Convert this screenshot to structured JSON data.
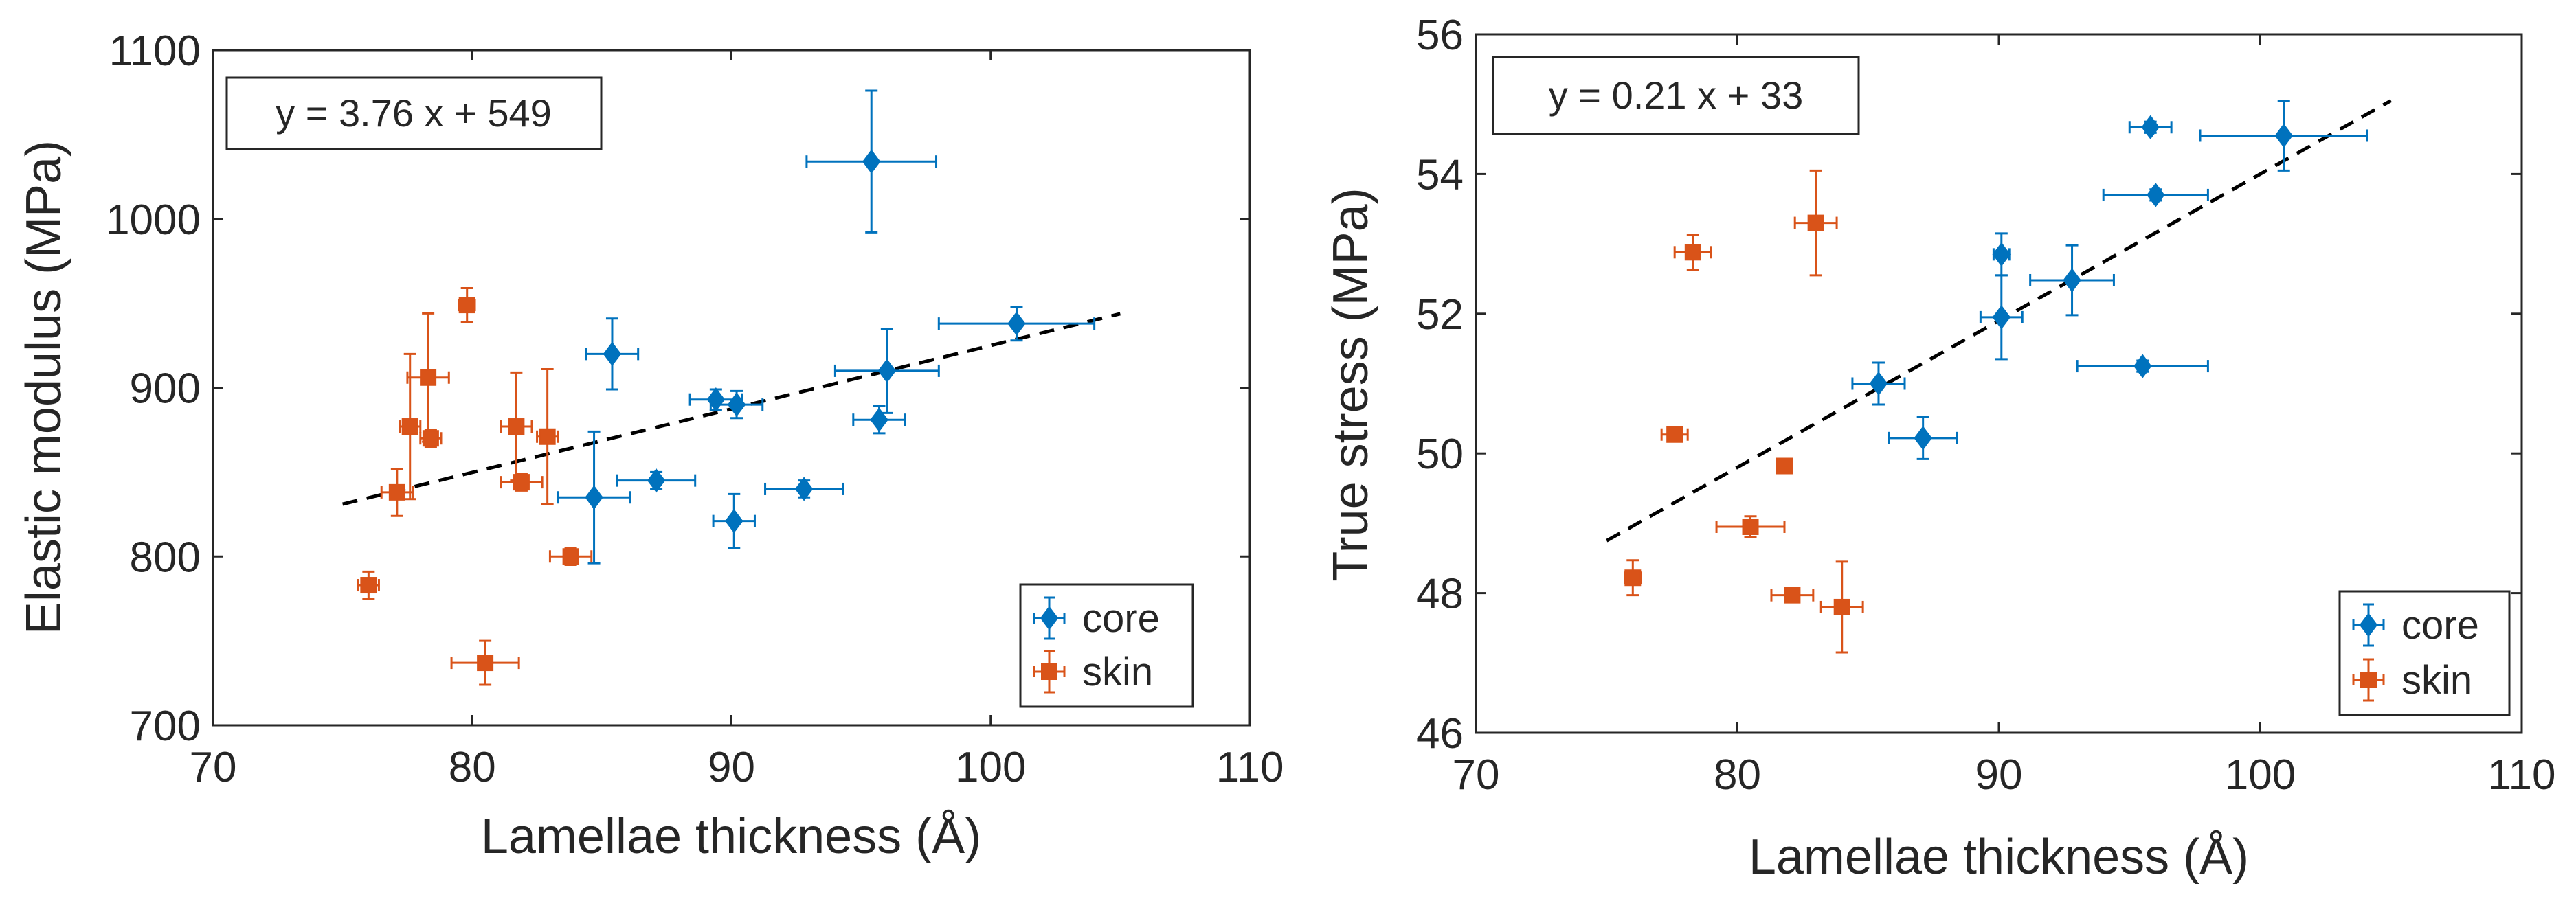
{
  "colors": {
    "core": "#0072BD",
    "skin": "#D95319",
    "fit": "#000000",
    "axis": "#262626"
  },
  "chart_data": [
    {
      "type": "scatter",
      "xlabel": "Lamellae thickness (Å)",
      "ylabel": "Elastic modulus (MPa)",
      "xlim": [
        70,
        110
      ],
      "ylim": [
        700,
        1100
      ],
      "xticks": [
        "70",
        "80",
        "90",
        "100",
        "110"
      ],
      "yticks": [
        "700",
        "800",
        "900",
        "1000",
        "1100"
      ],
      "equation": "y = 3.76 x + 549",
      "fit": {
        "slope": 3.76,
        "intercept": 549,
        "x_range": [
          75,
          105
        ]
      },
      "legend": {
        "location": "bottom-right",
        "entries": [
          "core",
          "skin"
        ]
      },
      "series": [
        {
          "name": "core",
          "marker": "diamond",
          "points": [
            {
              "x": 85.4,
              "y": 920,
              "xerr": 1.0,
              "yerr": 21
            },
            {
              "x": 89.4,
              "y": 893,
              "xerr": 1.0,
              "yerr": 6
            },
            {
              "x": 90.2,
              "y": 890,
              "xerr": 1.0,
              "yerr": 8
            },
            {
              "x": 96.0,
              "y": 910,
              "xerr": 2.0,
              "yerr": 25
            },
            {
              "x": 95.7,
              "y": 881,
              "xerr": 1.0,
              "yerr": 8
            },
            {
              "x": 101.0,
              "y": 938,
              "xerr": 3.0,
              "yerr": 10
            },
            {
              "x": 95.4,
              "y": 1034,
              "xerr": 2.5,
              "yerr": 42
            },
            {
              "x": 87.1,
              "y": 845,
              "xerr": 1.5,
              "yerr": 5
            },
            {
              "x": 92.8,
              "y": 840,
              "xerr": 1.5,
              "yerr": 5
            },
            {
              "x": 84.7,
              "y": 835,
              "xerr": 1.4,
              "yerr": 39
            },
            {
              "x": 90.1,
              "y": 821,
              "xerr": 0.8,
              "yerr": 16
            }
          ]
        },
        {
          "name": "skin",
          "marker": "square",
          "points": [
            {
              "x": 79.8,
              "y": 949,
              "xerr": 0.3,
              "yerr": 10
            },
            {
              "x": 78.3,
              "y": 906,
              "xerr": 0.8,
              "yerr": 38
            },
            {
              "x": 77.6,
              "y": 877,
              "xerr": 0.4,
              "yerr": 43
            },
            {
              "x": 78.4,
              "y": 870,
              "xerr": 0.4,
              "yerr": 5
            },
            {
              "x": 81.7,
              "y": 877,
              "xerr": 0.6,
              "yerr": 32
            },
            {
              "x": 82.9,
              "y": 871,
              "xerr": 0.4,
              "yerr": 40
            },
            {
              "x": 81.9,
              "y": 844,
              "xerr": 0.8,
              "yerr": 5
            },
            {
              "x": 77.1,
              "y": 838,
              "xerr": 0.6,
              "yerr": 14
            },
            {
              "x": 83.8,
              "y": 800,
              "xerr": 0.8,
              "yerr": 5
            },
            {
              "x": 76.0,
              "y": 783,
              "xerr": 0.4,
              "yerr": 8
            },
            {
              "x": 80.5,
              "y": 737,
              "xerr": 1.3,
              "yerr": 13
            }
          ]
        }
      ]
    },
    {
      "type": "scatter",
      "xlabel": "Lamellae thickness (Å)",
      "ylabel": "True stress (MPa)",
      "xlim": [
        70,
        110
      ],
      "ylim": [
        46,
        56
      ],
      "xticks": [
        "70",
        "80",
        "90",
        "100",
        "110"
      ],
      "yticks": [
        "46",
        "48",
        "50",
        "52",
        "54",
        "56"
      ],
      "equation": "y = 0.21 x + 33",
      "fit": {
        "slope": 0.21,
        "intercept": 33,
        "x_range": [
          75,
          105
        ]
      },
      "legend": {
        "location": "bottom-right",
        "entries": [
          "core",
          "skin"
        ]
      },
      "series": [
        {
          "name": "core",
          "marker": "diamond",
          "points": [
            {
              "x": 95.8,
              "y": 54.67,
              "xerr": 0.8,
              "yerr": 0.08
            },
            {
              "x": 100.9,
              "y": 54.55,
              "xerr": 3.2,
              "yerr": 0.5
            },
            {
              "x": 96.0,
              "y": 53.7,
              "xerr": 2.0,
              "yerr": 0.08
            },
            {
              "x": 90.1,
              "y": 52.85,
              "xerr": 0.3,
              "yerr": 0.3
            },
            {
              "x": 92.8,
              "y": 52.48,
              "xerr": 1.6,
              "yerr": 0.5
            },
            {
              "x": 90.1,
              "y": 51.95,
              "xerr": 0.8,
              "yerr": 0.6
            },
            {
              "x": 95.5,
              "y": 51.25,
              "xerr": 2.5,
              "yerr": 0.08
            },
            {
              "x": 85.4,
              "y": 51.0,
              "xerr": 1.0,
              "yerr": 0.3
            },
            {
              "x": 87.1,
              "y": 50.22,
              "xerr": 1.3,
              "yerr": 0.3
            }
          ]
        },
        {
          "name": "skin",
          "marker": "square",
          "points": [
            {
              "x": 83.0,
              "y": 53.3,
              "xerr": 0.8,
              "yerr": 0.75
            },
            {
              "x": 78.3,
              "y": 52.88,
              "xerr": 0.7,
              "yerr": 0.25
            },
            {
              "x": 77.6,
              "y": 50.27,
              "xerr": 0.5,
              "yerr": 0.06
            },
            {
              "x": 81.8,
              "y": 49.82,
              "xerr": 0.2,
              "yerr": 0.06
            },
            {
              "x": 80.5,
              "y": 48.95,
              "xerr": 1.3,
              "yerr": 0.15
            },
            {
              "x": 76.0,
              "y": 48.22,
              "xerr": 0.3,
              "yerr": 0.25
            },
            {
              "x": 82.1,
              "y": 47.97,
              "xerr": 0.8,
              "yerr": 0.06
            },
            {
              "x": 84.0,
              "y": 47.8,
              "xerr": 0.8,
              "yerr": 0.65
            }
          ]
        }
      ]
    }
  ]
}
